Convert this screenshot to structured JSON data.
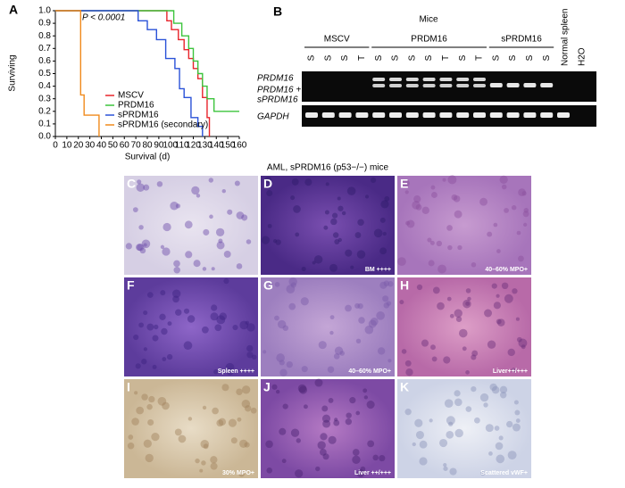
{
  "chart_data": {
    "type": "line",
    "panel": "A",
    "annotation": "P < 0.0001",
    "ylabel": "Surviving",
    "xlabel": "Survival (d)",
    "xlim": [
      0,
      160
    ],
    "ylim": [
      0,
      1
    ],
    "xticks": [
      0,
      10,
      20,
      30,
      40,
      50,
      60,
      70,
      80,
      90,
      100,
      110,
      120,
      130,
      140,
      150,
      160
    ],
    "yticks": [
      {
        "value": 0,
        "label": "0.0"
      },
      0.1,
      0.2,
      0.3,
      0.4,
      0.5,
      0.6,
      0.7,
      0.8,
      0.9,
      {
        "value": 1,
        "label": "1.0"
      }
    ],
    "series": [
      {
        "name": "MSCV",
        "color": "#e8242b",
        "x": [
          0,
          97,
          97,
          101,
          101,
          107,
          107,
          112,
          112,
          116,
          116,
          120,
          120,
          124,
          124,
          128,
          128,
          132,
          132,
          134,
          134
        ],
        "values": [
          1,
          1,
          0.92,
          0.92,
          0.85,
          0.85,
          0.77,
          0.77,
          0.69,
          0.69,
          0.62,
          0.62,
          0.54,
          0.54,
          0.46,
          0.46,
          0.31,
          0.31,
          0.15,
          0.15,
          0
        ]
      },
      {
        "name": "PRDM16",
        "color": "#3cc43c",
        "x": [
          0,
          103,
          103,
          110,
          110,
          116,
          116,
          120,
          120,
          124,
          124,
          128,
          128,
          132,
          132,
          138,
          138,
          160
        ],
        "values": [
          1,
          1,
          0.9,
          0.9,
          0.8,
          0.8,
          0.7,
          0.7,
          0.6,
          0.6,
          0.5,
          0.5,
          0.4,
          0.4,
          0.3,
          0.3,
          0.2,
          0.2
        ]
      },
      {
        "name": "sPRDM16",
        "color": "#2a52d8",
        "x": [
          0,
          72,
          72,
          80,
          80,
          88,
          88,
          96,
          96,
          104,
          104,
          108,
          108,
          112,
          112,
          118,
          118,
          124,
          124,
          128,
          128
        ],
        "values": [
          1,
          1,
          0.92,
          0.92,
          0.85,
          0.85,
          0.77,
          0.77,
          0.62,
          0.62,
          0.54,
          0.54,
          0.38,
          0.38,
          0.31,
          0.31,
          0.15,
          0.15,
          0.08,
          0.08,
          0
        ]
      },
      {
        "name": "sPRDM16 (secondary)",
        "color": "#f08a1c",
        "x": [
          0,
          22,
          22,
          25,
          25,
          38,
          38
        ],
        "values": [
          1,
          1,
          0.33,
          0.33,
          0.17,
          0.17,
          0
        ]
      }
    ]
  },
  "gel": {
    "panel": "B",
    "title": "Mice",
    "groups": [
      "MSCV",
      "PRDM16",
      "sPRDM16"
    ],
    "lanes": [
      "S",
      "S",
      "S",
      "T",
      "S",
      "S",
      "S",
      "S",
      "T",
      "S",
      "T",
      "S",
      "S",
      "S",
      "S"
    ],
    "controls": [
      "Normal spleen",
      "H2O"
    ],
    "row_labels": [
      "PRDM16",
      "PRDM16 +",
      "sPRDM16",
      "GAPDH"
    ]
  },
  "micrographs": {
    "title": "AML, sPRDM16 (p53−/−) mice",
    "panels": [
      {
        "label": "C",
        "caption": null
      },
      {
        "label": "D",
        "caption": "BM ++++"
      },
      {
        "label": "E",
        "caption": "40–60% MPO+"
      },
      {
        "label": "F",
        "caption": "Spleen ++++"
      },
      {
        "label": "G",
        "caption": "40–60% MPO+"
      },
      {
        "label": "H",
        "caption": "Liver++/+++"
      },
      {
        "label": "I",
        "caption": "30% MPO+"
      },
      {
        "label": "J",
        "caption": "Liver ++/+++"
      },
      {
        "label": "K",
        "caption": "Scattered vWF+"
      }
    ]
  }
}
